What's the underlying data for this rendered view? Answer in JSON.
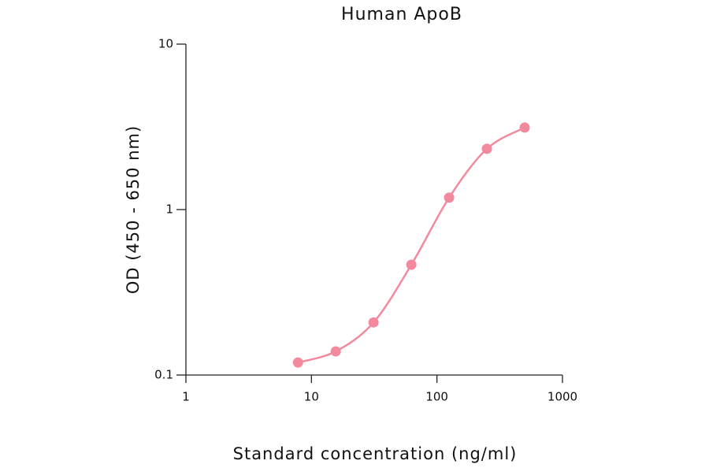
{
  "chart_data": {
    "type": "line",
    "title": "Human ApoB",
    "x_label": "Standard concentration (ng/ml)",
    "y_label": "OD (450 - 650 nm)",
    "x_scale": "log",
    "y_scale": "log",
    "xlim": [
      1,
      1000
    ],
    "xticks": [
      1,
      10,
      100,
      1000
    ],
    "ylim": [
      0.1,
      10
    ],
    "yticks": [
      0.1,
      1,
      10
    ],
    "markers": true,
    "series": [
      {
        "color": "#f2899d",
        "x": [
          7.8125,
          15.625,
          31.25,
          62.5,
          125,
          250,
          500
        ],
        "values": [
          0.119,
          0.139,
          0.208,
          0.464,
          1.18,
          2.33,
          3.13
        ]
      }
    ]
  }
}
